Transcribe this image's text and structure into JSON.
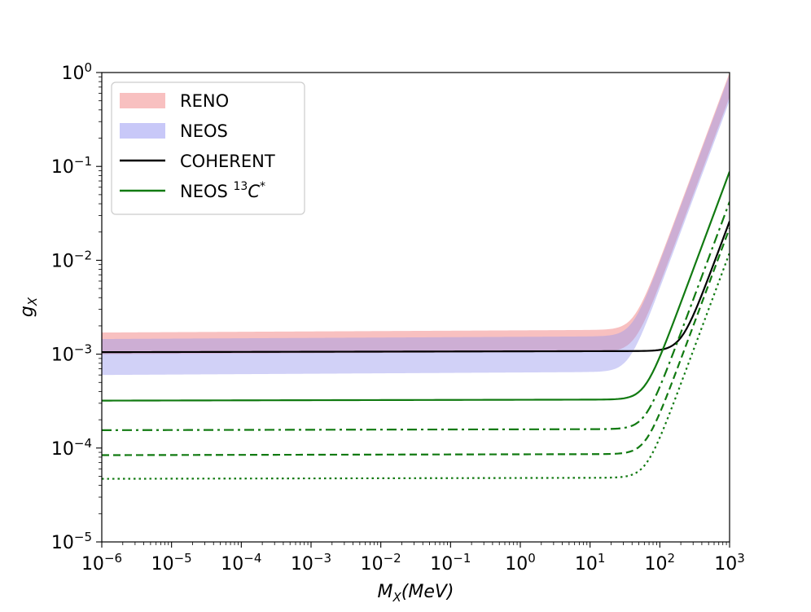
{
  "chart_data": {
    "type": "line",
    "title": "",
    "xlabel": {
      "base": "M",
      "sub": "X",
      "unit": "(MeV)"
    },
    "ylabel": {
      "base": "g",
      "sub": "X"
    },
    "xscale": "log",
    "yscale": "log",
    "xlim": [
      1e-06,
      1000.0
    ],
    "ylim": [
      1e-05,
      1
    ],
    "grid": false,
    "legend_position": "top-left",
    "x_ticks": [
      {
        "value": 1e-06,
        "base": "10",
        "exp": "−6"
      },
      {
        "value": 1e-05,
        "base": "10",
        "exp": "−5"
      },
      {
        "value": 0.0001,
        "base": "10",
        "exp": "−4"
      },
      {
        "value": 0.001,
        "base": "10",
        "exp": "−3"
      },
      {
        "value": 0.01,
        "base": "10",
        "exp": "−2"
      },
      {
        "value": 0.1,
        "base": "10",
        "exp": "−1"
      },
      {
        "value": 1,
        "base": "10",
        "exp": "0"
      },
      {
        "value": 10,
        "base": "10",
        "exp": "1"
      },
      {
        "value": 100,
        "base": "10",
        "exp": "2"
      },
      {
        "value": 1000,
        "base": "10",
        "exp": "3"
      }
    ],
    "y_ticks": [
      {
        "value": 1e-05,
        "base": "10",
        "exp": "−5"
      },
      {
        "value": 0.0001,
        "base": "10",
        "exp": "−4"
      },
      {
        "value": 0.001,
        "base": "10",
        "exp": "−3"
      },
      {
        "value": 0.01,
        "base": "10",
        "exp": "−2"
      },
      {
        "value": 0.1,
        "base": "10",
        "exp": "−1"
      },
      {
        "value": 1,
        "base": "10",
        "exp": "0"
      }
    ],
    "bands": [
      {
        "name": "RENO",
        "color": "#f8c0c0",
        "opacity": 1.0,
        "lower": 0.001,
        "upper": 0.0017,
        "transition_mev": 2.0,
        "lower_slope": 0.03,
        "upper_slope": 0.035,
        "y_at_1000_lower": 0.55,
        "y_at_1000_upper": 1.0
      },
      {
        "name": "NEOS",
        "color": "#9999ee",
        "opacity": 0.45,
        "lower": 0.0006,
        "upper": 0.00145,
        "transition_mev": 3.0,
        "lower_slope": 0.04,
        "upper_slope": 0.035,
        "y_at_1000_lower": 0.5,
        "y_at_1000_upper": 0.95
      }
    ],
    "series": [
      {
        "name": "COHERENT",
        "color": "#000000",
        "dash": "solid",
        "flat": 0.00105,
        "corner_mev": 30,
        "y_at_1000": 0.026,
        "in_legend": true
      },
      {
        "name": "NEOS 13C*",
        "color": "#117a11",
        "dash": "solid",
        "flat": 0.00032,
        "corner_mev": 4.0,
        "y_at_1000": 0.088,
        "in_legend": true
      },
      {
        "name": "NEOS 13C* (dash-dot)",
        "color": "#117a11",
        "dash": "dashdot",
        "flat": 0.000155,
        "corner_mev": 4.5,
        "y_at_1000": 0.042,
        "in_legend": false
      },
      {
        "name": "NEOS 13C* (dashed)",
        "color": "#117a11",
        "dash": "dashed",
        "flat": 8.4e-05,
        "corner_mev": 4.5,
        "y_at_1000": 0.022,
        "in_legend": false
      },
      {
        "name": "NEOS 13C* (dotted)",
        "color": "#117a11",
        "dash": "dotted",
        "flat": 4.7e-05,
        "corner_mev": 4.5,
        "y_at_1000": 0.012,
        "in_legend": false
      }
    ],
    "legend": [
      {
        "label": "RENO",
        "kind": "patch",
        "color": "#f8c0c0"
      },
      {
        "label": "NEOS",
        "kind": "patch",
        "color": "#c8c8f8"
      },
      {
        "label": "COHERENT",
        "kind": "line",
        "color": "#000000"
      },
      {
        "label_main": "NEOS ",
        "label_sup": "13",
        "label_tail": "C",
        "label_tail_sup": "*",
        "kind": "line",
        "color": "#117a11"
      }
    ]
  }
}
